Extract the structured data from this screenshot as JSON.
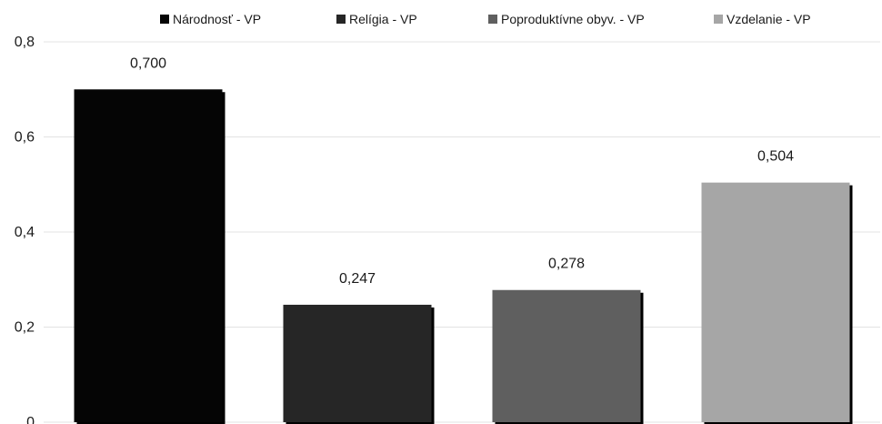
{
  "chart_data": {
    "type": "bar",
    "title": "",
    "xlabel": "",
    "ylabel": "",
    "ylim": [
      0,
      0.8
    ],
    "yticks": [
      "0",
      "0,2",
      "0,4",
      "0,6",
      "0,8"
    ],
    "grid": true,
    "legend_position": "top",
    "series": [
      {
        "name": "Národnosť - VP",
        "value": 0.7,
        "label": "0,700",
        "color": "#050505"
      },
      {
        "name": "Relígia - VP",
        "value": 0.247,
        "label": "0,247",
        "color": "#262626"
      },
      {
        "name": "Poproduktívne obyv. - VP",
        "value": 0.278,
        "label": "0,278",
        "color": "#5f5f5f"
      },
      {
        "name": "Vzdelanie - VP",
        "value": 0.504,
        "label": "0,504",
        "color": "#a6a6a6"
      }
    ]
  }
}
